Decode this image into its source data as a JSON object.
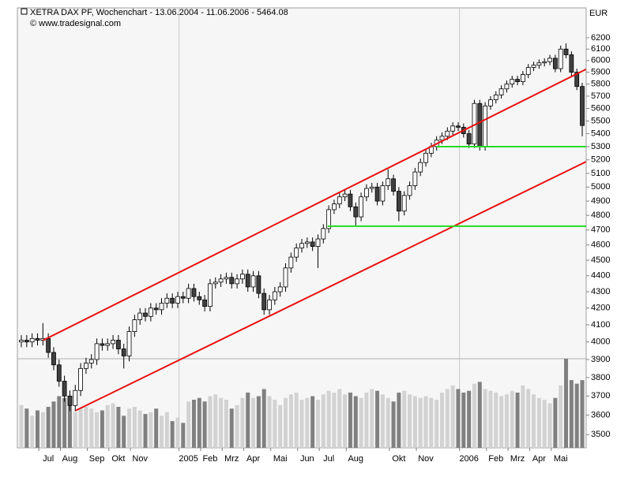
{
  "chart_data": {
    "type": "candlestick",
    "title": "XETRA DAX PF, Wochenchart - 13.06.2004 - 11.06.2006 - 5464.08",
    "subtitle": "© www.tradesignal.com",
    "y_unit": "EUR",
    "log": true,
    "ylim": [
      3434,
      6473
    ],
    "yticks": [
      3500,
      3600,
      3700,
      3800,
      3900,
      4000,
      4100,
      4200,
      4300,
      4400,
      4500,
      4600,
      4700,
      4800,
      4900,
      5000,
      5100,
      5200,
      5300,
      5400,
      5500,
      5600,
      5700,
      5800,
      5900,
      6000,
      6100,
      6200
    ],
    "categories": [
      null,
      null,
      null,
      null,
      null,
      "Jul",
      null,
      null,
      null,
      "Aug",
      null,
      null,
      null,
      null,
      "Sep",
      null,
      null,
      null,
      "Okt",
      null,
      null,
      null,
      "Nov",
      null,
      null,
      null,
      null,
      null,
      null,
      null,
      null,
      "2005",
      null,
      null,
      null,
      "Feb",
      null,
      null,
      null,
      "Mrz",
      null,
      null,
      null,
      "Apr",
      null,
      null,
      null,
      null,
      "Mai",
      null,
      null,
      null,
      null,
      "Jun",
      null,
      null,
      null,
      "Jul",
      null,
      null,
      null,
      null,
      "Aug",
      null,
      null,
      null,
      null,
      null,
      null,
      null,
      "Okt",
      null,
      null,
      null,
      null,
      "Nov",
      null,
      null,
      null,
      null,
      null,
      null,
      null,
      "2006",
      null,
      null,
      null,
      null,
      "Feb",
      null,
      null,
      null,
      "Mrz",
      null,
      null,
      null,
      "Apr",
      null,
      null,
      null,
      "Mai",
      null,
      null,
      null,
      null
    ],
    "open": [
      4000,
      4010,
      4000,
      4020,
      4010,
      4020,
      3940,
      3870,
      3780,
      3700,
      3650,
      3730,
      3850,
      3880,
      3900,
      3990,
      3980,
      3990,
      4010,
      3960,
      3920,
      4060,
      4130,
      4170,
      4150,
      4200,
      4190,
      4230,
      4260,
      4230,
      4270,
      4260,
      4320,
      4270,
      4250,
      4210,
      4350,
      4360,
      4380,
      4390,
      4350,
      4380,
      4410,
      4330,
      4400,
      4290,
      4190,
      4250,
      4300,
      4330,
      4450,
      4520,
      4580,
      4610,
      4620,
      4590,
      4640,
      4710,
      4840,
      4880,
      4930,
      4950,
      4860,
      4790,
      4930,
      4990,
      5000,
      4900,
      5010,
      5060,
      4970,
      4830,
      4940,
      5010,
      5110,
      5180,
      5250,
      5300,
      5350,
      5380,
      5420,
      5460,
      5450,
      5400,
      5320,
      5640,
      5300,
      5620,
      5670,
      5710,
      5760,
      5800,
      5840,
      5820,
      5880,
      5940,
      5960,
      5980,
      5990,
      6020,
      5930,
      6100,
      6050,
      5900,
      5780
    ],
    "high": [
      4040,
      4040,
      4050,
      4050,
      4110,
      4050,
      3970,
      3900,
      3810,
      3730,
      3760,
      3880,
      3910,
      3930,
      4020,
      4020,
      4020,
      4040,
      4040,
      3990,
      4090,
      4160,
      4200,
      4200,
      4230,
      4230,
      4260,
      4290,
      4290,
      4300,
      4300,
      4350,
      4350,
      4300,
      4280,
      4380,
      4390,
      4410,
      4420,
      4420,
      4410,
      4440,
      4440,
      4430,
      4430,
      4320,
      4280,
      4330,
      4360,
      4480,
      4550,
      4610,
      4640,
      4650,
      4650,
      4670,
      4740,
      4870,
      4910,
      4960,
      4980,
      4980,
      4890,
      4960,
      5020,
      5030,
      5030,
      5040,
      5130,
      5090,
      5000,
      4970,
      5040,
      5140,
      5210,
      5280,
      5330,
      5380,
      5410,
      5450,
      5490,
      5490,
      5480,
      5430,
      5670,
      5670,
      5650,
      5700,
      5740,
      5790,
      5830,
      5870,
      5870,
      5910,
      5970,
      5990,
      6010,
      6020,
      6050,
      6050,
      6130,
      6150,
      6080,
      5930,
      5810
    ],
    "low": [
      3970,
      3970,
      3970,
      3980,
      3980,
      3910,
      3840,
      3750,
      3670,
      3620,
      3620,
      3700,
      3820,
      3850,
      3870,
      3950,
      3950,
      3960,
      3930,
      3850,
      3890,
      4030,
      4100,
      4120,
      4120,
      4160,
      4160,
      4200,
      4200,
      4200,
      4230,
      4230,
      4240,
      4220,
      4180,
      4180,
      4320,
      4330,
      4350,
      4320,
      4320,
      4350,
      4300,
      4300,
      4260,
      4160,
      4160,
      4220,
      4270,
      4300,
      4420,
      4490,
      4550,
      4580,
      4560,
      4450,
      4610,
      4680,
      4810,
      4850,
      4900,
      4830,
      4730,
      4760,
      4900,
      4960,
      4870,
      4870,
      4980,
      4940,
      4760,
      4800,
      4910,
      4980,
      5080,
      5150,
      5220,
      5270,
      5320,
      5350,
      5390,
      5420,
      5370,
      5290,
      5290,
      5270,
      5270,
      5590,
      5640,
      5680,
      5730,
      5770,
      5790,
      5790,
      5850,
      5910,
      5930,
      5950,
      5960,
      5900,
      5900,
      6020,
      5870,
      5750,
      5380
    ],
    "close": [
      4010,
      4000,
      4020,
      4010,
      4020,
      3940,
      3870,
      3780,
      3700,
      3650,
      3730,
      3850,
      3880,
      3900,
      3990,
      3980,
      3990,
      4010,
      3960,
      3920,
      4060,
      4130,
      4170,
      4150,
      4200,
      4190,
      4230,
      4260,
      4230,
      4270,
      4260,
      4320,
      4270,
      4250,
      4210,
      4350,
      4360,
      4380,
      4390,
      4350,
      4380,
      4410,
      4330,
      4400,
      4290,
      4190,
      4250,
      4300,
      4330,
      4450,
      4520,
      4580,
      4610,
      4620,
      4590,
      4640,
      4710,
      4840,
      4880,
      4930,
      4950,
      4860,
      4790,
      4930,
      4990,
      5000,
      4900,
      5010,
      5060,
      4970,
      4830,
      4940,
      5010,
      5110,
      5180,
      5250,
      5300,
      5350,
      5380,
      5420,
      5460,
      5450,
      5400,
      5320,
      5640,
      5300,
      5620,
      5670,
      5710,
      5760,
      5800,
      5840,
      5820,
      5880,
      5940,
      5960,
      5980,
      5990,
      6020,
      5930,
      6100,
      6050,
      5900,
      5780,
      5464.08
    ],
    "up_color": "#ffffff",
    "down_color": "#404040",
    "volume": [
      48,
      44,
      36,
      42,
      40,
      46,
      52,
      58,
      56,
      48,
      40,
      44,
      46,
      44,
      40,
      42,
      48,
      50,
      46,
      36,
      44,
      46,
      42,
      38,
      40,
      44,
      36,
      40,
      30,
      34,
      28,
      52,
      54,
      56,
      52,
      58,
      60,
      56,
      54,
      44,
      48,
      56,
      62,
      56,
      58,
      66,
      58,
      54,
      48,
      56,
      60,
      62,
      54,
      56,
      58,
      54,
      60,
      64,
      62,
      66,
      60,
      62,
      58,
      56,
      62,
      66,
      64,
      60,
      56,
      52,
      62,
      64,
      60,
      58,
      56,
      58,
      56,
      54,
      62,
      66,
      70,
      66,
      62,
      64,
      72,
      74,
      66,
      64,
      62,
      58,
      60,
      64,
      62,
      70,
      66,
      60,
      56,
      54,
      50,
      56,
      70,
      100,
      76,
      72,
      76
    ],
    "vlim": [
      0,
      100
    ],
    "volume_up_color": "#d2d2d2",
    "volume_down_color": "#808080",
    "trendlines": [
      {
        "color": "#e81010",
        "x": [
          4,
          104.7
        ],
        "y": [
          4009,
          5925
        ]
      },
      {
        "color": "#e81010",
        "x": [
          10.1,
          104.7
        ],
        "y": [
          3624,
          5186
        ]
      },
      {
        "color": "#22dd22",
        "x": [
          56.8,
          104.7
        ],
        "y": [
          4726,
          4726
        ]
      },
      {
        "color": "#22dd22",
        "x": [
          77,
          104.7
        ],
        "y": [
          5300,
          5300
        ]
      }
    ]
  }
}
